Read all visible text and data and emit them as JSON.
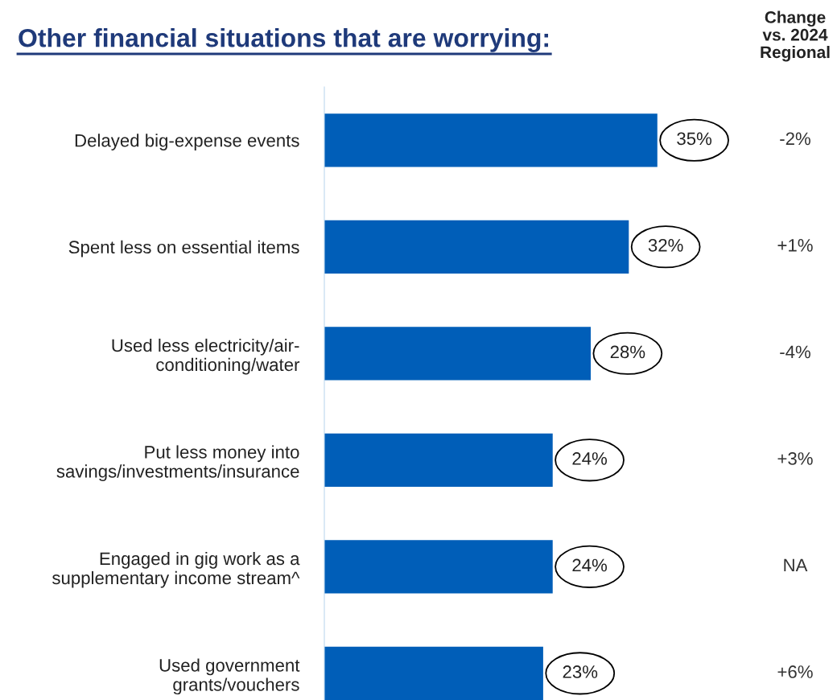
{
  "chart_data": {
    "type": "bar",
    "orientation": "horizontal",
    "title": "Other financial situations that are worrying:",
    "categories": [
      "Delayed big-expense events",
      "Spent less on essential items",
      "Used less electricity/air-\nconditioning/water",
      "Put less money into\nsavings/investments/insurance",
      "Engaged in gig work as a\nsupplementary income stream^",
      "Used government\ngrants/vouchers"
    ],
    "values": [
      35,
      32,
      28,
      24,
      24,
      23
    ],
    "value_labels": [
      "35%",
      "32%",
      "28%",
      "24%",
      "24%",
      "23%"
    ],
    "color": "#005eb8",
    "tick_labels": "y",
    "annotations": [
      "Change\nvs. 2024\nRegional",
      "-2%",
      "+1%",
      "-4%",
      "+3%",
      "NA",
      "+6%"
    ]
  }
}
